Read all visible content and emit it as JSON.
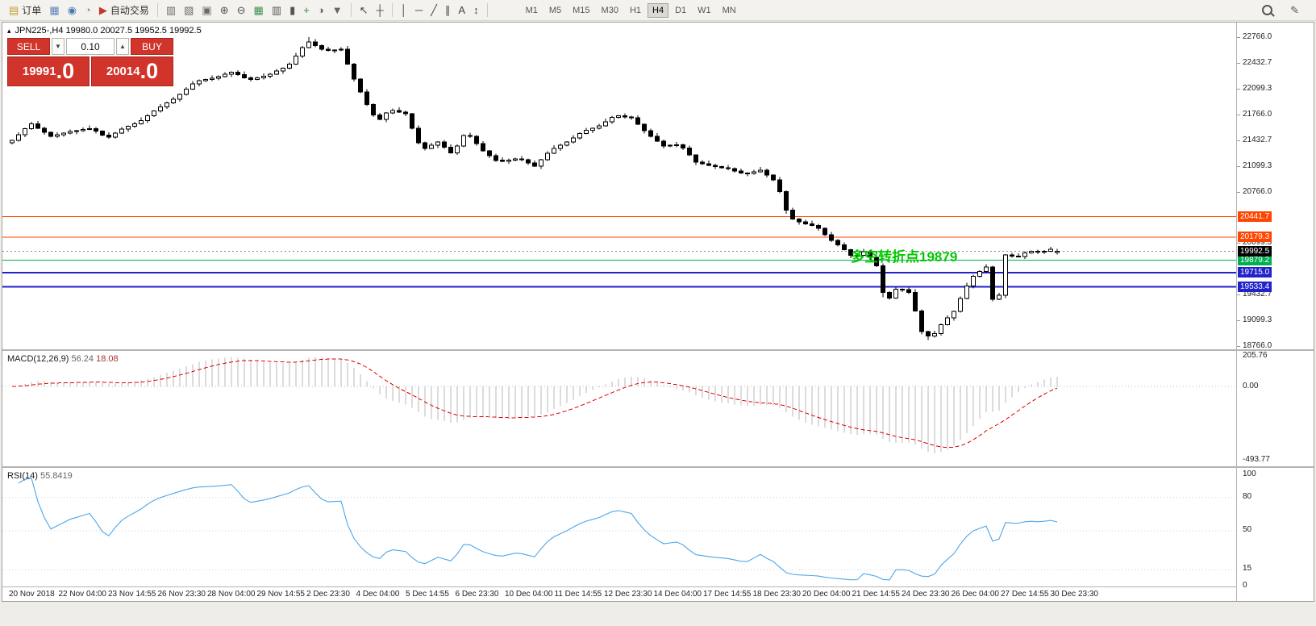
{
  "toolbar": {
    "left_items": [
      {
        "name": "new-order",
        "glyph": "▤",
        "color": "#c59a2f",
        "label": "订单"
      },
      {
        "name": "chart-window",
        "glyph": "▦",
        "color": "#5b84b8"
      },
      {
        "name": "navigator",
        "glyph": "◉",
        "color": "#4a7ab0"
      },
      {
        "name": "help",
        "glyph": "◔",
        "color": "#8a8a8a"
      },
      {
        "name": "autotrading",
        "glyph": "▶",
        "color": "#c03a2b",
        "label": "自动交易"
      },
      {
        "sep": true
      },
      {
        "name": "new-chart",
        "glyph": "▥",
        "color": "#6a6a6a"
      },
      {
        "name": "profiles",
        "glyph": "▧",
        "color": "#6a6a6a"
      },
      {
        "name": "cascade-windows",
        "glyph": "▣",
        "color": "#6a6a6a"
      },
      {
        "name": "zoom-in",
        "glyph": "⊕",
        "color": "#555555"
      },
      {
        "name": "zoom-out",
        "glyph": "⊖",
        "color": "#555555"
      },
      {
        "name": "tile-windows",
        "glyph": "▦",
        "color": "#3f8f4f"
      },
      {
        "name": "bar-chart-type",
        "glyph": "▥",
        "color": "#555555"
      },
      {
        "name": "candlestick-type",
        "glyph": "▮",
        "color": "#555555"
      },
      {
        "name": "indicators-add",
        "glyph": "+",
        "color": "#2e8b2e"
      },
      {
        "name": "periods",
        "glyph": "◑",
        "color": "#666666"
      },
      {
        "name": "templates-dropdown",
        "glyph": "▼",
        "color": "#666666"
      },
      {
        "sep": true
      },
      {
        "name": "cursor",
        "glyph": "↖",
        "color": "#444444"
      },
      {
        "name": "crosshair",
        "glyph": "┼",
        "color": "#444444"
      },
      {
        "sep": true
      },
      {
        "name": "vertical-line-tool",
        "glyph": "│",
        "color": "#444444"
      },
      {
        "name": "horizontal-line-tool",
        "glyph": "─",
        "color": "#444444"
      },
      {
        "name": "trendline-tool",
        "glyph": "╱",
        "color": "#444444"
      },
      {
        "name": "channel-tool",
        "glyph": "∥",
        "color": "#444444"
      },
      {
        "name": "text-tool",
        "glyph": "A",
        "color": "#444444"
      },
      {
        "name": "arrows-tool",
        "glyph": "↕",
        "color": "#444444"
      },
      {
        "sep": true
      }
    ],
    "timeframes": {
      "items": [
        "M1",
        "M5",
        "M15",
        "M30",
        "H1",
        "H4",
        "D1",
        "W1",
        "MN"
      ],
      "active": "H4"
    },
    "right_items": [
      {
        "name": "symbol-search",
        "icon": "magnifier"
      },
      {
        "name": "quick-edit",
        "glyph": "✎",
        "color": "#555555"
      }
    ]
  },
  "chart": {
    "title_icon": "▴",
    "title": "JPN225-,H4 19980.0 20027.5 19952.5 19992.5",
    "annotation": {
      "text": "多空转折点19879",
      "color": "#00c800"
    },
    "y_labels": [
      22766.0,
      22432.7,
      22099.3,
      21766.0,
      21432.7,
      21099.3,
      20766.0,
      20099.3,
      19432.7,
      19099.3,
      18766.0
    ],
    "levels": [
      {
        "price": 20441.7,
        "color": "#ff4500",
        "width": 1,
        "badge": "20441.7"
      },
      {
        "price": 20179.3,
        "color": "#ff4500",
        "width": 1,
        "badge": "20179.3"
      },
      {
        "price": 19879.2,
        "color": "#00b050",
        "width": 1,
        "badge": "19879.2"
      },
      {
        "price": 19715.0,
        "color": "#2222cc",
        "width": 2,
        "badge": "19715.0"
      },
      {
        "price": 19533.4,
        "color": "#2222cc",
        "width": 2,
        "badge": "19533.4"
      }
    ],
    "current_price": {
      "price": 19992.5,
      "badge": "19992.5",
      "line_color": "#888888",
      "badge_bg": "#000000"
    },
    "x_labels": [
      "20 Nov 2018",
      "22 Nov 04:00",
      "23 Nov 14:55",
      "26 Nov 23:30",
      "28 Nov 04:00",
      "29 Nov 14:55",
      "2 Dec 23:30",
      "4 Dec 04:00",
      "5 Dec 14:55",
      "6 Dec 23:30",
      "10 Dec 04:00",
      "11 Dec 14:55",
      "12 Dec 23:30",
      "14 Dec 04:00",
      "17 Dec 14:55",
      "18 Dec 23:30",
      "20 Dec 04:00",
      "21 Dec 14:55",
      "24 Dec 23:30",
      "26 Dec 04:00",
      "27 Dec 14:55",
      "30 Dec 23:30"
    ]
  },
  "one_click": {
    "sell_label": "SELL",
    "buy_label": "BUY",
    "volume": "0.10",
    "down_glyph": "▼",
    "up_glyph": "▲",
    "sell_price": "19991",
    "sell_frac": ".0",
    "buy_price": "20014",
    "buy_frac": ".0",
    "panel_color": "#d1342a"
  },
  "macd": {
    "name": "MACD(12,26,9)",
    "value": "56.24",
    "signal_value": "18.08",
    "scale": [
      "205.76",
      "0.00",
      "-493.77"
    ],
    "scale_values": [
      205.76,
      0,
      -493.77
    ],
    "fast": 12,
    "slow": 26,
    "signal": 9,
    "histogram_color": "#b9b9b9",
    "signal_color": "#e00000"
  },
  "rsi": {
    "name": "RSI(14)",
    "value": "55.8419",
    "scale": [
      100,
      80,
      50,
      15,
      0
    ],
    "levels": [
      80,
      50,
      15
    ],
    "period": 14,
    "color": "#4da6ea"
  },
  "chart_data": {
    "type": "candlestick",
    "symbol": "JPN225-",
    "timeframe": "H4",
    "price_min_visible": 18766.0,
    "price_max_visible": 22766.0,
    "last_ohlc": {
      "open": 19980.0,
      "high": 20027.5,
      "low": 19952.5,
      "close": 19992.5
    },
    "indicators": [
      {
        "type": "MACD",
        "params": [
          12,
          26,
          9
        ]
      },
      {
        "type": "RSI",
        "params": [
          14
        ]
      }
    ],
    "candles": [
      [
        21400,
        21442.5,
        21375,
        21427.5
      ],
      [
        21427.5,
        21535,
        21415.5,
        21505
      ],
      [
        21505,
        21592,
        21470,
        21582
      ],
      [
        21582,
        21667.5,
        21564,
        21642.5
      ],
      [
        21642.5,
        21682.5,
        21578.5,
        21588.5
      ],
      [
        21588.5,
        21608.5,
        21505,
        21535
      ],
      [
        21535,
        21547,
        21467,
        21482
      ],
      [
        21482,
        21536.5,
        21460,
        21501.5
      ],
      [
        21501.5,
        21536.5,
        21476.5,
        21521.5
      ],
      [
        21521.5,
        21572.5,
        21509.5,
        21542.5
      ],
      [
        21542.5,
        21566,
        21507.5,
        21556
      ],
      [
        21556,
        21594.5,
        21538,
        21569.5
      ],
      [
        21569.5,
        21623,
        21559.5,
        21583
      ],
      [
        21583,
        21603,
        21518.5,
        21548.5
      ],
      [
        21548.5,
        21560.5,
        21483.5,
        21498.5
      ],
      [
        21498.5,
        21533.5,
        21451.5,
        21473.5
      ],
      [
        21473.5,
        21538.5,
        21448.5,
        21523.5
      ],
      [
        21523.5,
        21604,
        21511.5,
        21574
      ],
      [
        21574,
        21621.5,
        21539,
        21611.5
      ],
      [
        21611.5,
        21669.5,
        21593.5,
        21644.5
      ],
      [
        21644.5,
        21725.5,
        21634.5,
        21685.5
      ],
      [
        21685.5,
        21768,
        21655.5,
        21748
      ],
      [
        21748,
        21822.5,
        21733,
        21810.5
      ],
      [
        21810.5,
        21899,
        21788.5,
        21864
      ],
      [
        21864,
        21929,
        21839,
        21914
      ],
      [
        21914,
        21994,
        21902,
        21964
      ],
      [
        21964,
        22035,
        21929,
        22025
      ],
      [
        22025,
        22116.5,
        22007,
        22091.5
      ],
      [
        22091.5,
        22198.5,
        22081.5,
        22158.5
      ],
      [
        22158.5,
        22220,
        22128.5,
        22200
      ],
      [
        22200,
        22229,
        22185,
        22217
      ],
      [
        22217,
        22268.5,
        22195,
        22233.5
      ],
      [
        22233.5,
        22270,
        22208.5,
        22255
      ],
      [
        22255,
        22314,
        22243,
        22284
      ],
      [
        22284,
        22323.5,
        22249,
        22313.5
      ],
      [
        22313.5,
        22338.5,
        22262.5,
        22280.5
      ],
      [
        22280.5,
        22320.5,
        22229,
        22239
      ],
      [
        22239,
        22259,
        22190,
        22220
      ],
      [
        22220,
        22252,
        22205,
        22240
      ],
      [
        22240,
        22295.5,
        22218,
        22260.5
      ],
      [
        22260.5,
        22301,
        22235.5,
        22286
      ],
      [
        22286,
        22355.5,
        22274,
        22325.5
      ],
      [
        22325.5,
        22375,
        22290.5,
        22365
      ],
      [
        22365,
        22439,
        22347,
        22414
      ],
      [
        22414,
        22562.5,
        22404,
        22522.5
      ],
      [
        22522.5,
        22652.5,
        22492.5,
        22632.5
      ],
      [
        22632.5,
        22766,
        22617.5,
        22702.5
      ],
      [
        22702.5,
        22737.5,
        22634.5,
        22656.5
      ],
      [
        22656.5,
        22671.5,
        22586.5,
        22611.5
      ],
      [
        22611.5,
        22641.5,
        22580.5,
        22592.5
      ],
      [
        22592.5,
        22611,
        22557.5,
        22601
      ],
      [
        22601,
        22634.5,
        22583,
        22609.5
      ],
      [
        22609.5,
        22649.5,
        22404,
        22414
      ],
      [
        22414,
        22434,
        22193,
        22223
      ],
      [
        22223,
        22235,
        22041,
        22056
      ],
      [
        22056,
        22091,
        21874.5,
        21896.5
      ],
      [
        21896.5,
        21911.5,
        21731.5,
        21756.5
      ],
      [
        21756.5,
        21786.5,
        21689,
        21701
      ],
      [
        21701,
        21794.5,
        21666,
        21784.5
      ],
      [
        21784.5,
        21841,
        21766.5,
        21816
      ],
      [
        21816,
        21856,
        21785,
        21795
      ],
      [
        21795,
        21815,
        21744,
        21774
      ],
      [
        21774,
        21786,
        21571.5,
        21586.5
      ],
      [
        21586.5,
        21621.5,
        21376.5,
        21398.5
      ],
      [
        21398.5,
        21413.5,
        21300.5,
        21325.5
      ],
      [
        21325.5,
        21397,
        21313.5,
        21367
      ],
      [
        21367,
        21419,
        21332,
        21409
      ],
      [
        21409,
        21434,
        21321,
        21339
      ],
      [
        21339,
        21379,
        21260,
        21270
      ],
      [
        21270,
        21375.5,
        21240,
        21355.5
      ],
      [
        21355.5,
        21505.5,
        21340.5,
        21493.5
      ],
      [
        21493.5,
        21528.5,
        21462.5,
        21484.5
      ],
      [
        21484.5,
        21499.5,
        21363.5,
        21388.5
      ],
      [
        21388.5,
        21418.5,
        21284.5,
        21296.5
      ],
      [
        21296.5,
        21306.5,
        21199,
        21234
      ],
      [
        21234,
        21259,
        21153.5,
        21171.5
      ],
      [
        21171.5,
        21211.5,
        21148,
        21158
      ],
      [
        21158,
        21195,
        21128,
        21175
      ],
      [
        21175,
        21203.5,
        21160,
        21191.5
      ],
      [
        21191.5,
        21226.5,
        21157,
        21179
      ],
      [
        21179,
        21194,
        21112.5,
        21137.5
      ],
      [
        21137.5,
        21167.5,
        21083.5,
        21095.5
      ],
      [
        21095.5,
        21189,
        21060.5,
        21179
      ],
      [
        21179,
        21287.5,
        21161,
        21262.5
      ],
      [
        21262.5,
        21365.5,
        21252.5,
        21325.5
      ],
      [
        21325.5,
        21387,
        21295.5,
        21367
      ],
      [
        21367,
        21421,
        21352,
        21409
      ],
      [
        21409,
        21498,
        21387,
        21463
      ],
      [
        21463,
        21532.5,
        21438,
        21517.5
      ],
      [
        21517.5,
        21589,
        21505.5,
        21559
      ],
      [
        21559,
        21598.5,
        21524,
        21588.5
      ],
      [
        21588.5,
        21642.5,
        21570.5,
        21617.5
      ],
      [
        21617.5,
        21712,
        21607.5,
        21672
      ],
      [
        21672,
        21746,
        21642,
        21726
      ],
      [
        21726,
        21759,
        21711,
        21747
      ],
      [
        21747,
        21782,
        21712.5,
        21734.5
      ],
      [
        21734.5,
        21749.5,
        21697,
        21722
      ],
      [
        21722,
        21752,
        21626.5,
        21638.5
      ],
      [
        21638.5,
        21648.5,
        21520,
        21555
      ],
      [
        21555,
        21580,
        21464,
        21482
      ],
      [
        21482,
        21522,
        21409,
        21419
      ],
      [
        21419,
        21439,
        21326.5,
        21356.5
      ],
      [
        21356.5,
        21377,
        21341.5,
        21365
      ],
      [
        21365,
        21408.5,
        21343,
        21373.5
      ],
      [
        21373.5,
        21388.5,
        21306.5,
        21331.5
      ],
      [
        21331.5,
        21361.5,
        21227.5,
        21239.5
      ],
      [
        21239.5,
        21249.5,
        21113,
        21148
      ],
      [
        21148,
        21173,
        21109,
        21127
      ],
      [
        21127,
        21167,
        21096,
        21106
      ],
      [
        21106,
        21126,
        21059.5,
        21089.5
      ],
      [
        21089.5,
        21101.5,
        21062,
        21077
      ],
      [
        21077,
        21112,
        21042.5,
        21064.5
      ],
      [
        21064.5,
        21079.5,
        21010,
        21035
      ],
      [
        21035,
        21065,
        20994,
        21006
      ],
      [
        21006,
        21016,
        20966.5,
        21001.5
      ],
      [
        21001.5,
        21047.5,
        20983.5,
        21022.5
      ],
      [
        21022.5,
        21083.5,
        21012.5,
        21043.5
      ],
      [
        21043.5,
        21063.5,
        20951,
        20981
      ],
      [
        20981,
        20993,
        20903,
        20918
      ],
      [
        20918,
        20953,
        20744.5,
        20766.5
      ],
      [
        20766.5,
        20781.5,
        20480,
        20527.5
      ],
      [
        20527.5,
        20557.5,
        20402,
        20414
      ],
      [
        20414,
        20424,
        20339,
        20374
      ],
      [
        20374,
        20399,
        20331,
        20349
      ],
      [
        20349,
        20389,
        20318.5,
        20328.5
      ],
      [
        20328.5,
        20348.5,
        20261.5,
        20291.5
      ],
      [
        20291.5,
        20303.5,
        20193,
        20208
      ],
      [
        20208,
        20243,
        20113,
        20135
      ],
      [
        20135,
        20150,
        20055,
        20080
      ],
      [
        20080,
        20110,
        20003,
        20015
      ],
      [
        20015,
        20025,
        19908,
        19943
      ],
      [
        19943,
        19969,
        19925,
        19944
      ],
      [
        19944,
        20028,
        19934,
        19988
      ],
      [
        19988,
        20008,
        19886,
        19916
      ],
      [
        19916,
        19928,
        19789,
        19804
      ],
      [
        19804,
        19839,
        19400,
        19461.5
      ],
      [
        19461.5,
        19476.5,
        19365.5,
        19390.5
      ],
      [
        19390.5,
        19531.5,
        19378.5,
        19501.5
      ],
      [
        19501.5,
        19511.5,
        19465.5,
        19500.5
      ],
      [
        19500.5,
        19525.5,
        19443.5,
        19461.5
      ],
      [
        19461.5,
        19501.5,
        19212.5,
        19222.5
      ],
      [
        19222.5,
        19242.5,
        18920,
        18955.5
      ],
      [
        18955.5,
        18967.5,
        18845,
        18900
      ],
      [
        18900,
        18964.5,
        18878,
        18929.5
      ],
      [
        18929.5,
        19060,
        18904.5,
        19045
      ],
      [
        19045,
        19163,
        19033,
        19133
      ],
      [
        19133,
        19226.5,
        19098,
        19216.5
      ],
      [
        19216.5,
        19408.5,
        19198.5,
        19383.5
      ],
      [
        19383.5,
        19585.5,
        19373.5,
        19545.5
      ],
      [
        19545.5,
        19690.5,
        19515.5,
        19670.5
      ],
      [
        19670.5,
        19747.5,
        19655.5,
        19735.5
      ],
      [
        19735.5,
        19825.5,
        19713.5,
        19790.5
      ],
      [
        19790.5,
        19805.5,
        19348,
        19373
      ],
      [
        19373,
        19455,
        19361,
        19425
      ],
      [
        19425,
        19957,
        19390,
        19947
      ],
      [
        19947,
        19972,
        19911.5,
        19929.5
      ],
      [
        19929.5,
        19969.5,
        19917.5,
        19927.5
      ],
      [
        19927.5,
        19995.5,
        19897.5,
        19975.5
      ],
      [
        19975.5,
        20005,
        19960.5,
        19993
      ],
      [
        19993,
        20016.5,
        19959.5,
        19981.5
      ],
      [
        19981.5,
        20011.5,
        19956.5,
        19996.5
      ],
      [
        19996.5,
        20050.5,
        19984.5,
        20020.5
      ],
      [
        19980,
        20027.5,
        19952.5,
        19992.5
      ]
    ]
  }
}
